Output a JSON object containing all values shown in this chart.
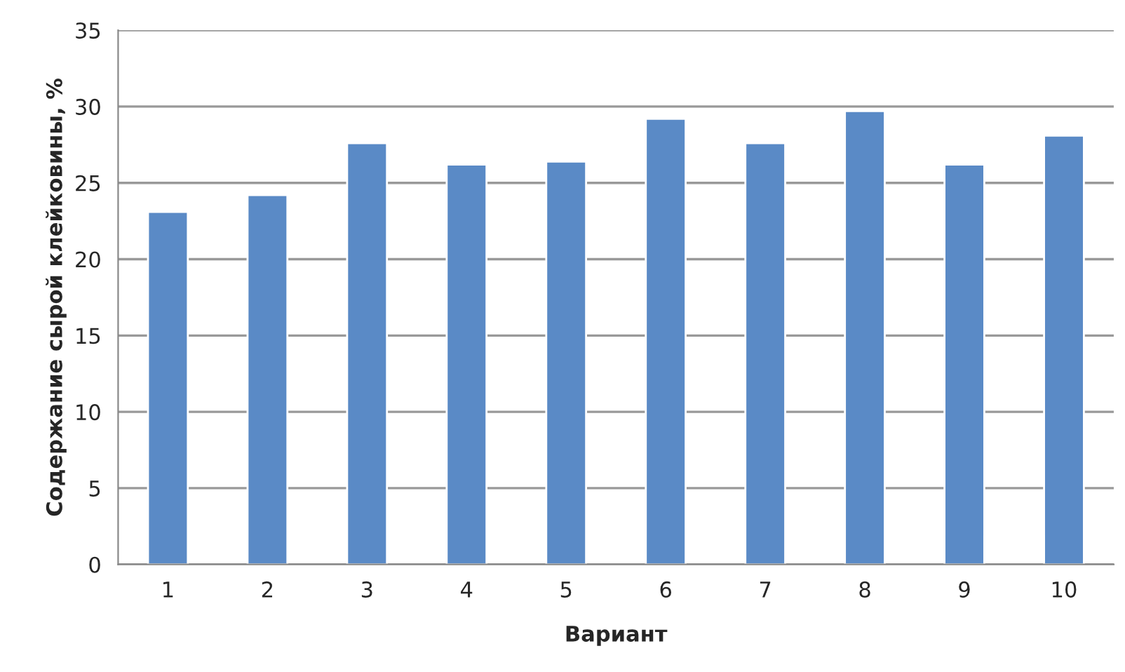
{
  "chart_data": {
    "type": "bar",
    "xlabel": "Вариант",
    "ylabel": "Содержание сырой клейковины, %",
    "categories": [
      "1",
      "2",
      "3",
      "4",
      "5",
      "6",
      "7",
      "8",
      "9",
      "10"
    ],
    "values": [
      23.1,
      24.2,
      27.6,
      26.2,
      26.4,
      29.2,
      27.6,
      29.7,
      26.2,
      28.1
    ],
    "color": "#5a8ac6",
    "ylim": [
      0,
      35
    ],
    "yticks": [
      0,
      5,
      10,
      15,
      20,
      25,
      30,
      35
    ],
    "grid": "y",
    "legend": false
  }
}
